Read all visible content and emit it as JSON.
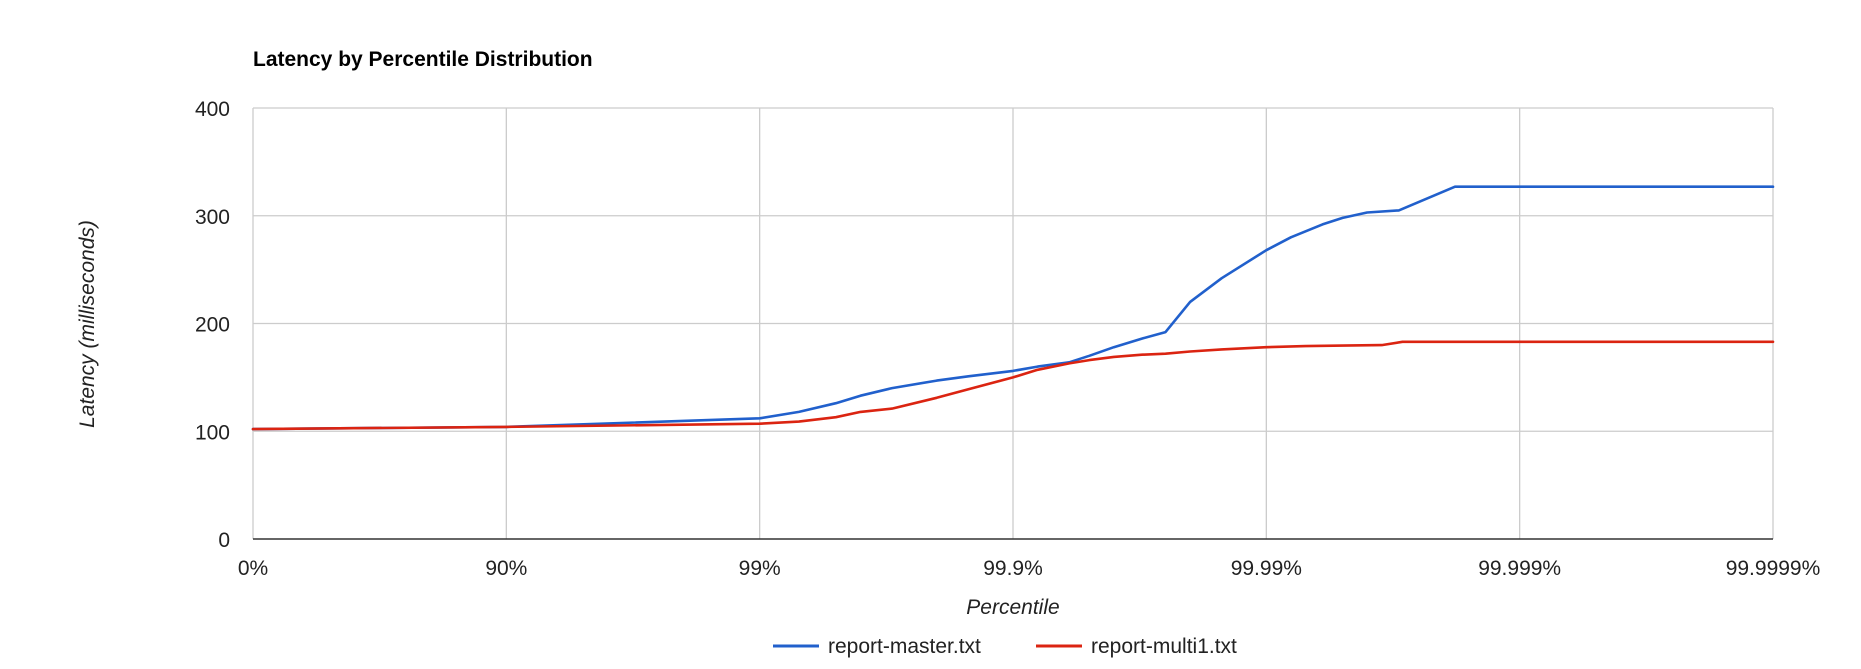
{
  "chart_data": {
    "type": "line",
    "title": "Latency by Percentile Distribution",
    "xlabel": "Percentile",
    "ylabel": "Latency (milliseconds)",
    "x_scale": "percentile-nines",
    "x_ticks": [
      "0%",
      "90%",
      "99%",
      "99.9%",
      "99.99%",
      "99.999%",
      "99.9999%"
    ],
    "y_ticks": [
      "0",
      "100",
      "200",
      "300",
      "400"
    ],
    "ylim": [
      0,
      400
    ],
    "grid": true,
    "legend_position": "bottom",
    "series": [
      {
        "name": "report-master.txt",
        "color": "#2160cc",
        "x": [
          0,
          90,
          99,
          99.3,
          99.5,
          99.6,
          99.7,
          99.8,
          99.85,
          99.9,
          99.92,
          99.94,
          99.95,
          99.96,
          99.969,
          99.975,
          99.98,
          99.985,
          99.99,
          99.992,
          99.994,
          99.995,
          99.996,
          99.997,
          99.9982,
          99.9989,
          99.9999
        ],
        "y": [
          102,
          104,
          112,
          118,
          126,
          133,
          140,
          147,
          151,
          156,
          160,
          164,
          170,
          178,
          186,
          192,
          220,
          242,
          268,
          280,
          292,
          298,
          303,
          305,
          327,
          327,
          327
        ]
      },
      {
        "name": "report-multi1.txt",
        "color": "#db2411",
        "x": [
          0,
          90,
          99,
          99.3,
          99.5,
          99.6,
          99.7,
          99.8,
          99.85,
          99.9,
          99.92,
          99.94,
          99.95,
          99.96,
          99.969,
          99.975,
          99.98,
          99.985,
          99.99,
          99.993,
          99.995,
          99.9965,
          99.9971,
          99.9999
        ],
        "y": [
          102,
          104,
          107,
          109,
          113,
          118,
          121,
          131,
          139,
          150,
          157,
          163,
          166,
          169,
          171,
          172,
          174,
          176,
          178,
          179,
          179.5,
          180,
          183,
          183
        ]
      }
    ]
  }
}
